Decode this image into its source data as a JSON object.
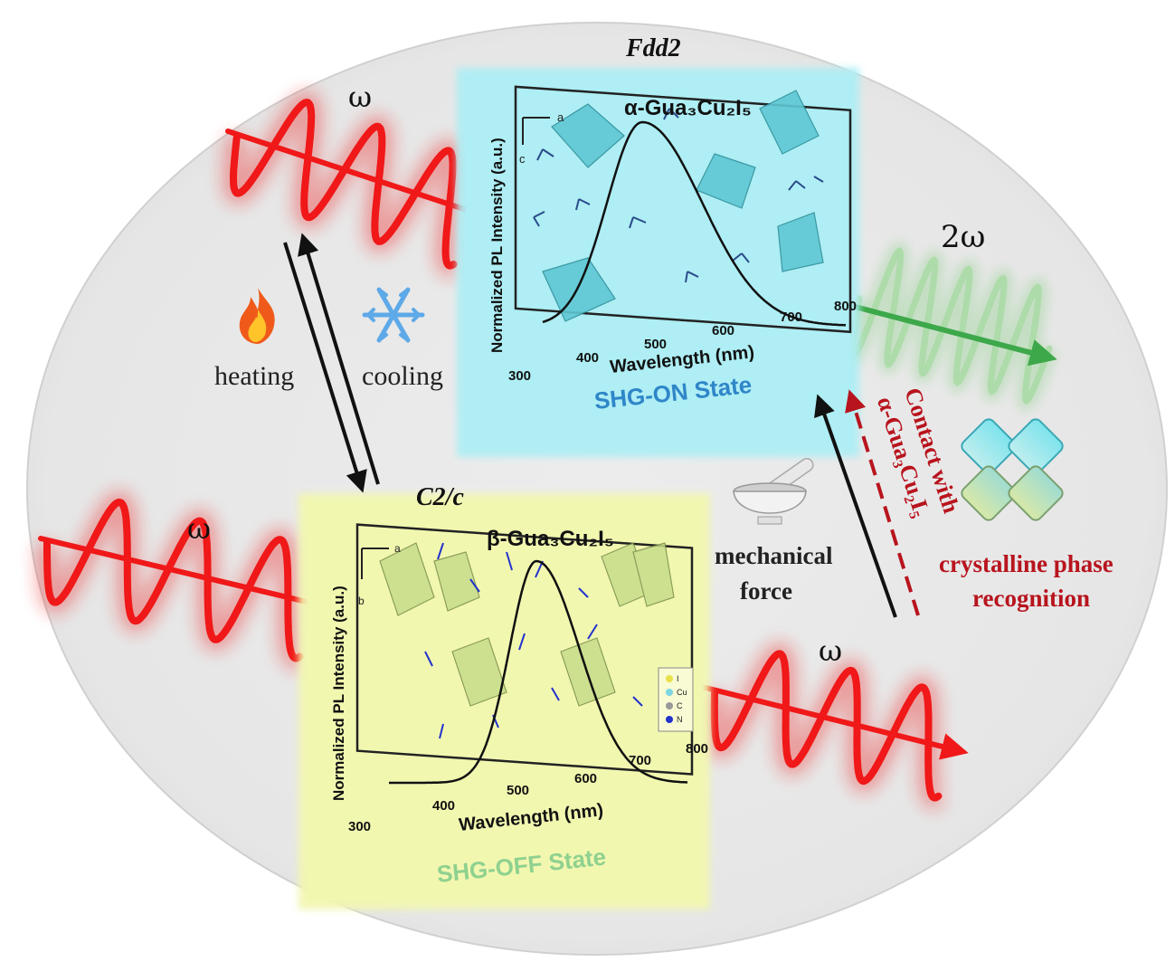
{
  "top_panel": {
    "space_group": "Fdd2",
    "compound": "α-Gua₃Cu₂I₅",
    "state": "SHG-ON State",
    "ylabel": "Normalized PL Intensity (a.u.)",
    "xlabel": "Wavelength (nm)",
    "xticks": [
      "300",
      "400",
      "500",
      "600",
      "700",
      "800"
    ],
    "axis_a": "a",
    "axis_c": "c",
    "bg_color": "#aeeef4"
  },
  "bottom_panel": {
    "space_group": "C2/c",
    "compound": "β-Gua₃Cu₂I₅",
    "state": "SHG-OFF State",
    "ylabel": "Normalized PL Intensity (a.u.)",
    "xlabel": "Wavelength (nm)",
    "xticks": [
      "300",
      "400",
      "500",
      "600",
      "700",
      "800"
    ],
    "axis_a": "a",
    "axis_b": "b",
    "legend": [
      "I",
      "Cu",
      "C",
      "N"
    ],
    "bg_color": "#f2f7b0"
  },
  "labels": {
    "omega": "ω",
    "two_omega": "2ω",
    "heating": "heating",
    "cooling": "cooling",
    "mechanical_force_1": "mechanical",
    "mechanical_force_2": "force",
    "contact_1": "Contact with",
    "contact_2": "α-Gua₃Cu₂I₅",
    "recognition_1": "crystalline phase",
    "recognition_2": "recognition"
  },
  "icons": [
    "flame-icon",
    "snowflake-icon",
    "mortar-pestle-icon",
    "crystal-cluster-icon"
  ],
  "colors": {
    "laser_red": "#f01818",
    "shg_green": "#3da84a",
    "dark_red_text": "#b8141e",
    "state_on_blue": "#2f86c8",
    "state_off_green": "#8fd18f"
  }
}
